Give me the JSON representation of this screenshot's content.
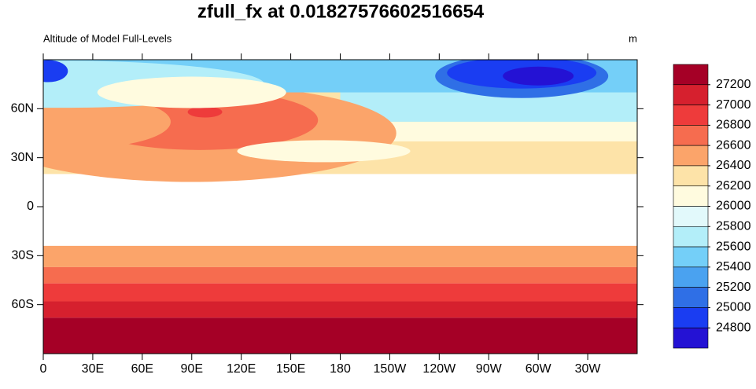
{
  "map": {
    "title": "zfull_fx at 0.01827576602516654",
    "left_string": "Altitude of Model Full-Levels",
    "right_string": "m",
    "lon_ticks": [
      {
        "value": 0,
        "label": "0"
      },
      {
        "value": 30,
        "label": "30E"
      },
      {
        "value": 60,
        "label": "60E"
      },
      {
        "value": 90,
        "label": "90E"
      },
      {
        "value": 120,
        "label": "120E"
      },
      {
        "value": 150,
        "label": "150E"
      },
      {
        "value": 180,
        "label": "180"
      },
      {
        "value": 210,
        "label": "150W"
      },
      {
        "value": 240,
        "label": "120W"
      },
      {
        "value": 270,
        "label": "90W"
      },
      {
        "value": 300,
        "label": "60W"
      },
      {
        "value": 330,
        "label": "30W"
      }
    ],
    "lat_ticks": [
      {
        "value": 60,
        "label": "60N"
      },
      {
        "value": 30,
        "label": "30N"
      },
      {
        "value": 0,
        "label": "0"
      },
      {
        "value": -30,
        "label": "30S"
      },
      {
        "value": -60,
        "label": "60S"
      }
    ],
    "colorbar": {
      "levels": [
        27200,
        27000,
        26800,
        26600,
        26400,
        26200,
        26000,
        25800,
        25600,
        25400,
        25200,
        25000,
        24800
      ],
      "colors": [
        "#a50026",
        "#d6202e",
        "#ee3b3b",
        "#f66c4f",
        "#fba46a",
        "#fde3a8",
        "#fffbdf",
        "#e2f9fb",
        "#b3eef9",
        "#74cff8",
        "#4aa2f0",
        "#2f6fe6",
        "#1a3df2",
        "#2412d4"
      ]
    }
  }
}
